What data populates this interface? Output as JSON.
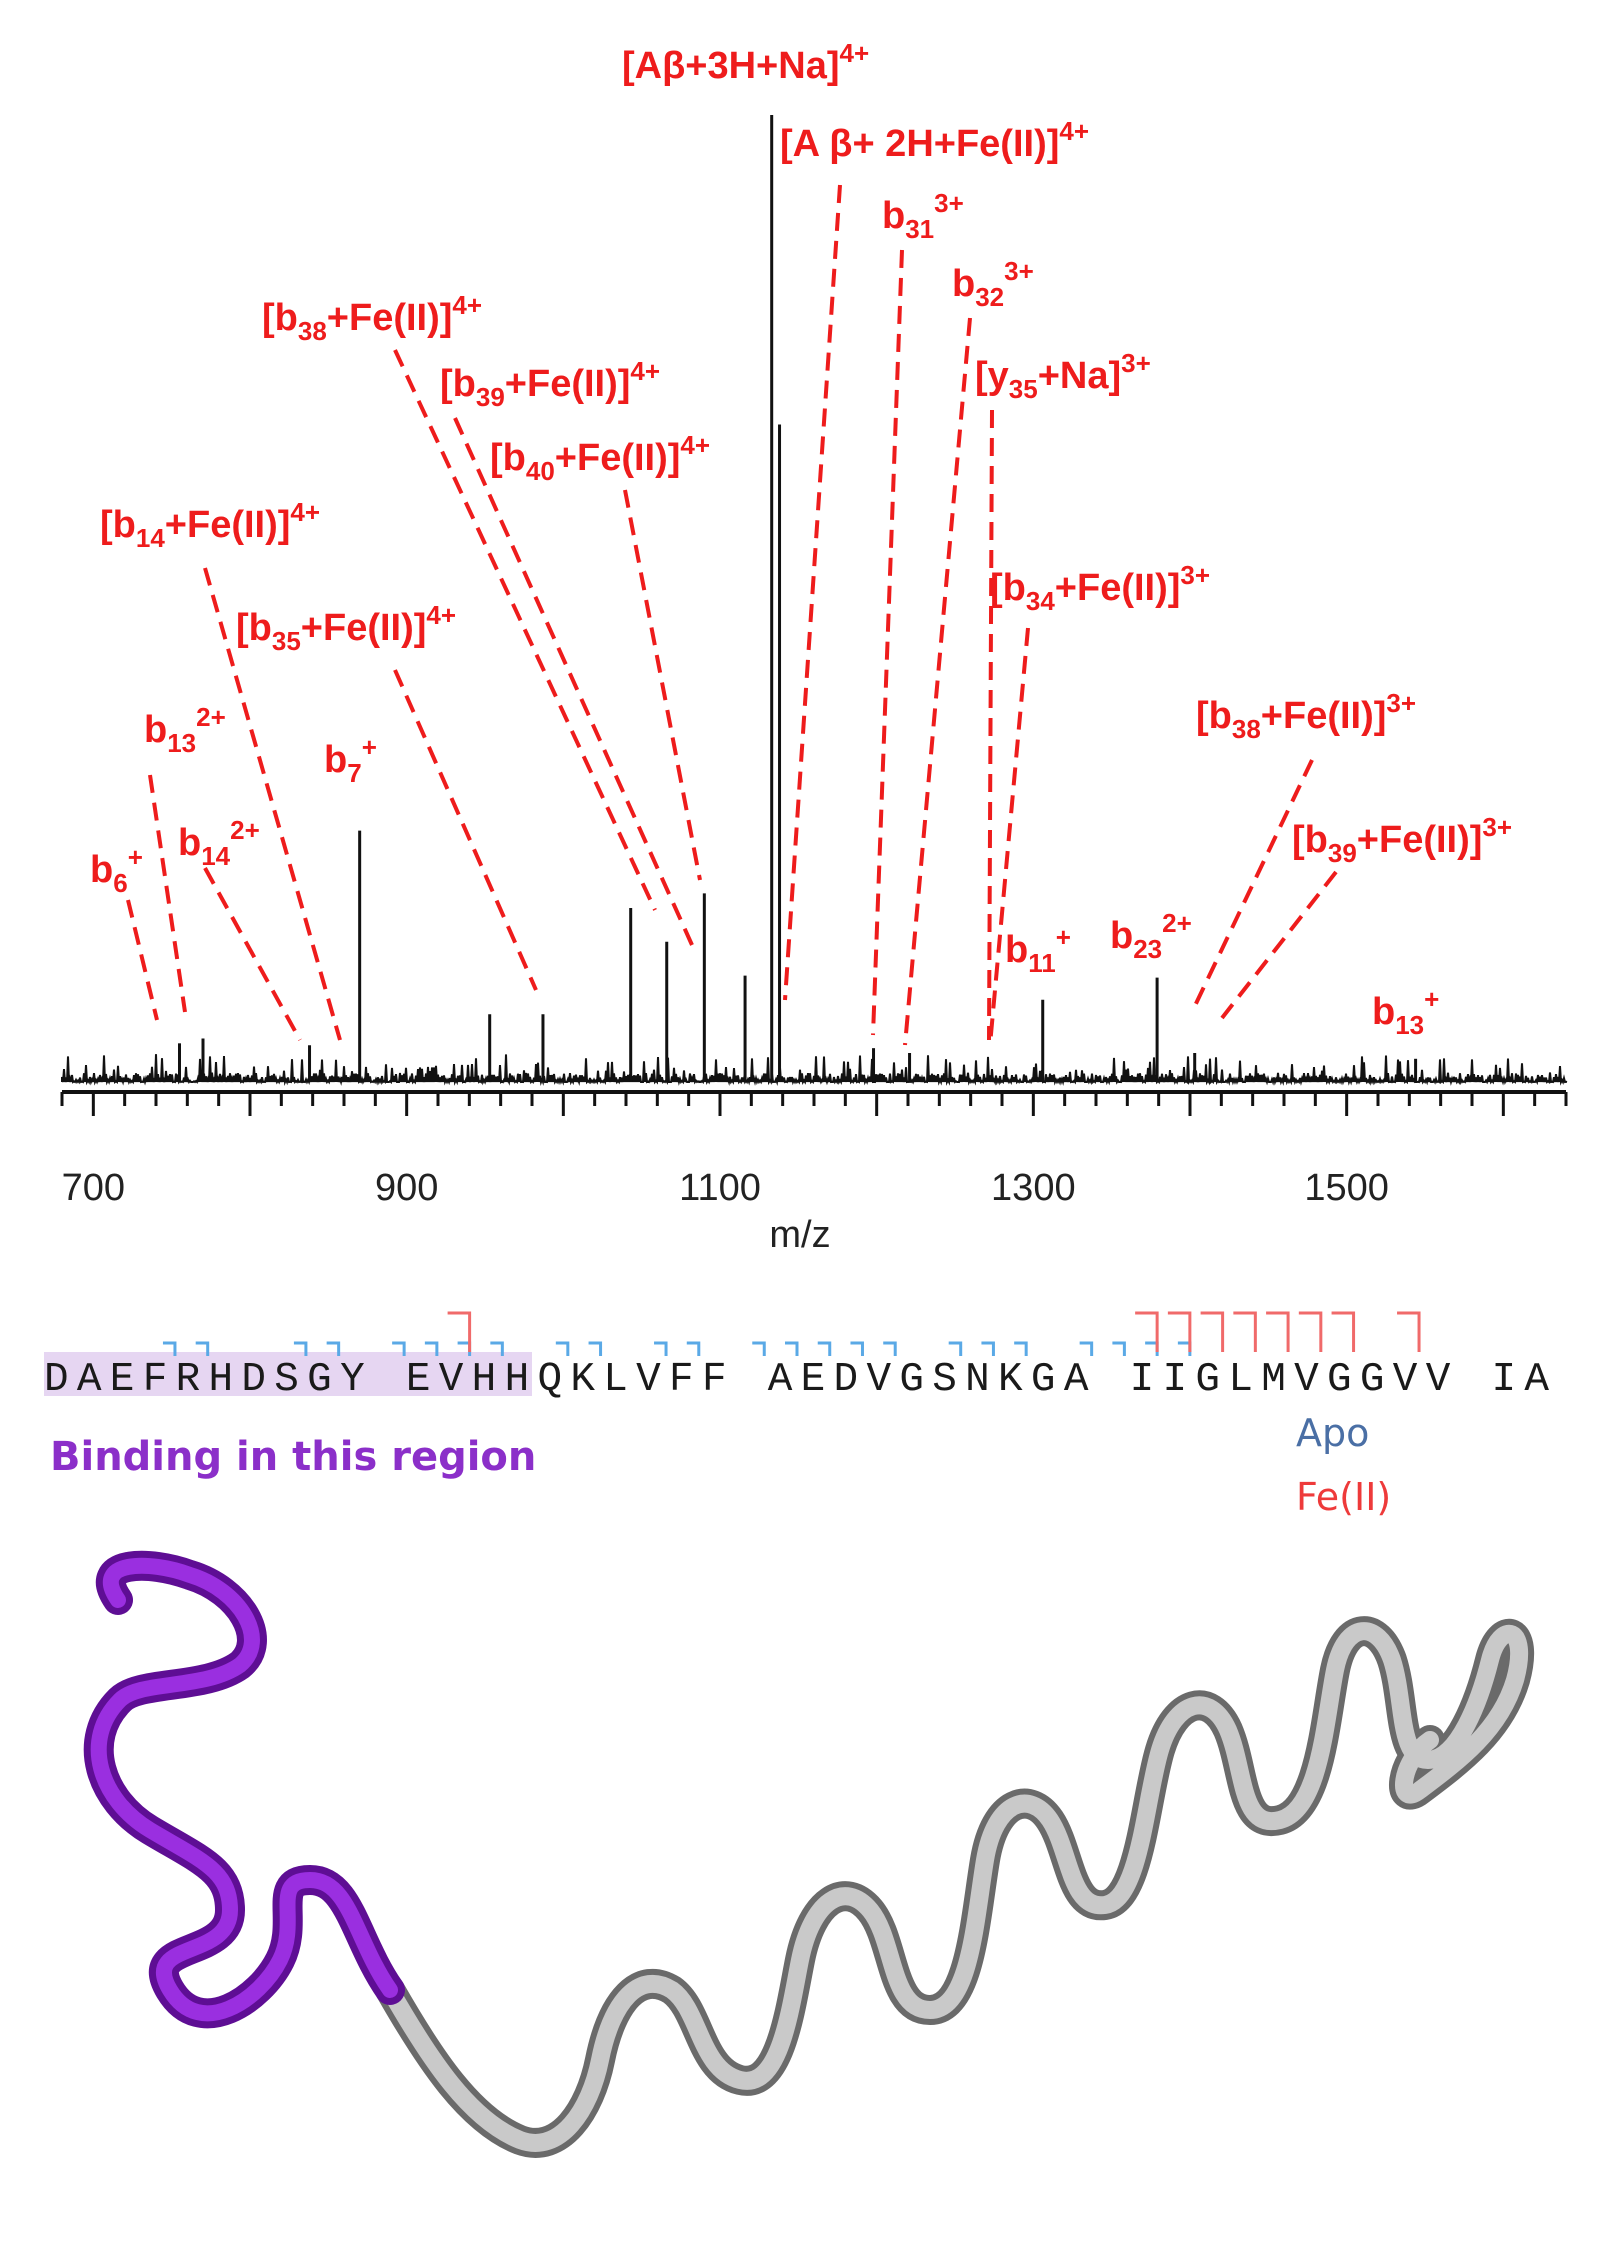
{
  "chart_data": {
    "type": "line",
    "title": "",
    "xlabel": "m/z",
    "ylabel": "",
    "xlim": [
      680,
      1640
    ],
    "ylim": [
      0,
      100
    ],
    "xticks_labeled": [
      700,
      900,
      1100,
      1300,
      1500
    ],
    "xticks_minor_step": 20,
    "grid": false,
    "peaks": [
      {
        "x": 755,
        "y": 4
      },
      {
        "x": 770,
        "y": 4.5
      },
      {
        "x": 838,
        "y": 3.8
      },
      {
        "x": 870,
        "y": 26
      },
      {
        "x": 953,
        "y": 7
      },
      {
        "x": 987,
        "y": 7
      },
      {
        "x": 1043,
        "y": 18
      },
      {
        "x": 1066,
        "y": 14.5
      },
      {
        "x": 1090,
        "y": 19.5
      },
      {
        "x": 1116,
        "y": 11
      },
      {
        "x": 1133,
        "y": 100
      },
      {
        "x": 1138,
        "y": 68
      },
      {
        "x": 1198,
        "y": 3.5
      },
      {
        "x": 1221,
        "y": 3
      },
      {
        "x": 1306,
        "y": 8.5
      },
      {
        "x": 1379,
        "y": 10.8
      },
      {
        "x": 1403,
        "y": 3
      },
      {
        "x": 1544,
        "y": 2.4
      }
    ],
    "annotations": [
      {
        "id": "ab_3h_na_4",
        "base": "[Aβ+3H+Na]",
        "sub": "",
        "tail": "",
        "sup": "4+"
      },
      {
        "id": "ab_2h_fe_4",
        "base": "[A β+ 2H+Fe(II)]",
        "sub": "",
        "tail": "",
        "sup": "4+"
      },
      {
        "id": "b31_3",
        "base": "b",
        "sub": "31",
        "tail": "",
        "sup": "3+"
      },
      {
        "id": "b32_3",
        "base": "b",
        "sub": "32",
        "tail": "",
        "sup": "3+"
      },
      {
        "id": "b38_fe_4",
        "base": "[b",
        "sub": "38",
        "tail": "+Fe(II)]",
        "sup": "4+"
      },
      {
        "id": "b39_fe_4",
        "base": "[b",
        "sub": "39",
        "tail": "+Fe(II)]",
        "sup": "4+"
      },
      {
        "id": "y35_na_3",
        "base": "[y",
        "sub": "35",
        "tail": "+Na]",
        "sup": "3+"
      },
      {
        "id": "b40_fe_4",
        "base": "[b",
        "sub": "40",
        "tail": "+Fe(II)]",
        "sup": "4+"
      },
      {
        "id": "b14_fe_4",
        "base": "[b",
        "sub": "14",
        "tail": "+Fe(II)]",
        "sup": "4+"
      },
      {
        "id": "b35_fe_4",
        "base": "[b",
        "sub": "35",
        "tail": "+Fe(II)]",
        "sup": "4+"
      },
      {
        "id": "b34_fe_3",
        "base": "[b",
        "sub": "34",
        "tail": "+Fe(II)]",
        "sup": "3+"
      },
      {
        "id": "b13_2",
        "base": "b",
        "sub": "13",
        "tail": "",
        "sup": "2+"
      },
      {
        "id": "b7_1",
        "base": "b",
        "sub": "7",
        "tail": "",
        "sup": "+"
      },
      {
        "id": "b38_fe_3",
        "base": "[b",
        "sub": "38",
        "tail": "+Fe(II)]",
        "sup": "3+"
      },
      {
        "id": "b14_2",
        "base": "b",
        "sub": "14",
        "tail": "",
        "sup": "2+"
      },
      {
        "id": "b6_1",
        "base": "b",
        "sub": "6",
        "tail": "",
        "sup": "+"
      },
      {
        "id": "b39_fe_3",
        "base": "[b",
        "sub": "39",
        "tail": "+Fe(II)]",
        "sup": "3+"
      },
      {
        "id": "b11_1",
        "base": "b",
        "sub": "11",
        "tail": "",
        "sup": "+"
      },
      {
        "id": "b23_2",
        "base": "b",
        "sub": "23",
        "tail": "",
        "sup": "2+"
      },
      {
        "id": "b13_1",
        "base": "b",
        "sub": "13",
        "tail": "",
        "sup": "+"
      }
    ]
  },
  "sequence": {
    "residues": "DAEFRHDSGY EVHHQKLVFF AEDVGSNKGA IIGLMVGGVV IA",
    "binding_region_label": "Binding in this region",
    "legend": {
      "apo": "Apo",
      "fe": "Fe(II)"
    },
    "colors": {
      "apo": "#5aa9e6",
      "fe": "#f06a6a",
      "binding": "#8b2fc9",
      "highlight": "#e6d6f2"
    }
  },
  "structure": {
    "colors": {
      "binding": "#8e1fd0",
      "rest": "#b8b8b8"
    }
  }
}
